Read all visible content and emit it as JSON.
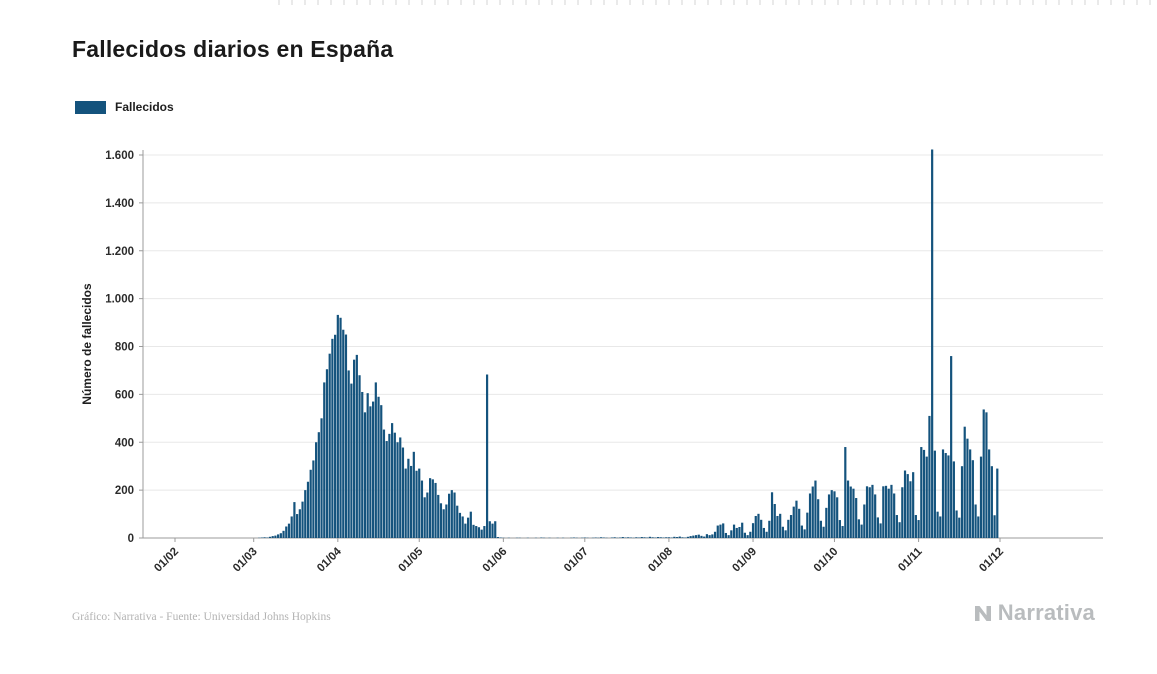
{
  "header": {
    "title": "Fallecidos diarios en España"
  },
  "legend": {
    "label": "Fallecidos",
    "color": "#14537d"
  },
  "footer": {
    "credit": "Gráfico: Narrativa - Fuente: Universidad Johns Hopkins",
    "brand": "Narrativa"
  },
  "chart_data": {
    "type": "bar",
    "title": "Fallecidos diarios en España",
    "series_name": "Fallecidos",
    "xlabel": "",
    "ylabel": "Número de fallecidos",
    "ylim": [
      0,
      1600
    ],
    "grid": "horizontal",
    "legend_position": "top-left",
    "bar_color": "#14537d",
    "axis_color": "#9b9b9b",
    "grid_color": "#e8e8e8",
    "tick_label_color": "#2b2b2b",
    "start_date": "2020-02-01",
    "x_ticks": [
      {
        "label": "01/02",
        "day": 0
      },
      {
        "label": "01/03",
        "day": 29
      },
      {
        "label": "01/04",
        "day": 60
      },
      {
        "label": "01/05",
        "day": 90
      },
      {
        "label": "01/06",
        "day": 121
      },
      {
        "label": "01/07",
        "day": 151
      },
      {
        "label": "01/08",
        "day": 182
      },
      {
        "label": "01/09",
        "day": 213
      },
      {
        "label": "01/10",
        "day": 243
      },
      {
        "label": "01/11",
        "day": 274
      },
      {
        "label": "01/12",
        "day": 304
      }
    ],
    "y_ticks": [
      {
        "label": "0",
        "value": 0
      },
      {
        "label": "200",
        "value": 200
      },
      {
        "label": "400",
        "value": 400
      },
      {
        "label": "600",
        "value": 600
      },
      {
        "label": "800",
        "value": 800
      },
      {
        "label": "1.000",
        "value": 1000
      },
      {
        "label": "1.200",
        "value": 1200
      },
      {
        "label": "1.400",
        "value": 1400
      },
      {
        "label": "1.600",
        "value": 1600
      }
    ],
    "values": [
      0,
      0,
      0,
      0,
      0,
      0,
      0,
      0,
      0,
      0,
      0,
      0,
      0,
      0,
      0,
      0,
      0,
      0,
      0,
      0,
      0,
      0,
      0,
      0,
      0,
      0,
      0,
      0,
      0,
      0,
      0,
      1,
      2,
      3,
      2,
      5,
      8,
      10,
      15,
      20,
      30,
      48,
      60,
      90,
      150,
      100,
      120,
      152,
      200,
      235,
      285,
      324,
      400,
      442,
      500,
      650,
      705,
      770,
      832,
      849,
      932,
      920,
      870,
      850,
      700,
      645,
      745,
      765,
      680,
      610,
      525,
      605,
      550,
      570,
      650,
      590,
      555,
      453,
      405,
      435,
      480,
      440,
      400,
      420,
      378,
      290,
      331,
      301,
      360,
      281,
      290,
      240,
      170,
      190,
      250,
      245,
      230,
      180,
      145,
      120,
      140,
      185,
      200,
      190,
      135,
      105,
      90,
      60,
      85,
      110,
      55,
      50,
      45,
      35,
      50,
      683,
      70,
      60,
      70,
      4,
      2,
      1,
      0,
      1,
      0,
      0,
      1,
      1,
      0,
      0,
      1,
      0,
      0,
      1,
      0,
      2,
      1,
      0,
      1,
      0,
      0,
      1,
      0,
      1,
      0,
      0,
      1,
      2,
      1,
      0,
      1,
      2,
      1,
      0,
      1,
      2,
      1,
      3,
      2,
      1,
      0,
      2,
      3,
      1,
      2,
      4,
      2,
      3,
      2,
      1,
      3,
      2,
      4,
      3,
      2,
      5,
      3,
      2,
      4,
      3,
      2,
      3,
      3,
      2,
      5,
      4,
      6,
      3,
      2,
      5,
      8,
      10,
      12,
      14,
      9,
      6,
      16,
      12,
      15,
      26,
      52,
      56,
      61,
      21,
      12,
      32,
      56,
      42,
      46,
      64,
      22,
      12,
      26,
      62,
      92,
      101,
      76,
      42,
      26,
      72,
      191,
      142,
      92,
      101,
      47,
      32,
      76,
      96,
      131,
      156,
      122,
      52,
      36,
      106,
      186,
      215,
      240,
      162,
      72,
      47,
      126,
      182,
      200,
      195,
      170,
      75,
      50,
      380,
      240,
      215,
      206,
      167,
      78,
      56,
      140,
      216,
      212,
      222,
      182,
      86,
      61,
      216,
      218,
      206,
      222,
      186,
      96,
      66,
      212,
      282,
      267,
      237,
      275,
      96,
      75,
      380,
      368,
      340,
      510,
      1623,
      365,
      110,
      90,
      370,
      355,
      345,
      760,
      320,
      115,
      85,
      300,
      465,
      415,
      370,
      325,
      140,
      90,
      340,
      537,
      525,
      370,
      300,
      95,
      290
    ]
  }
}
